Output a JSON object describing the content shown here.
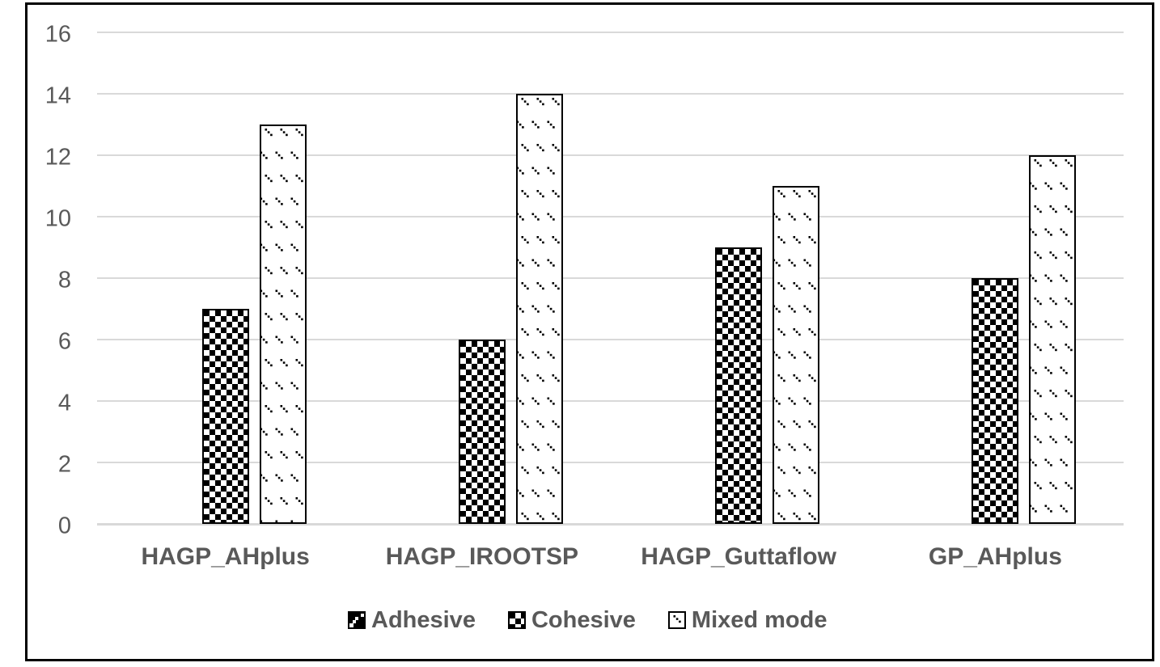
{
  "chart_data": {
    "type": "bar",
    "title": "",
    "xlabel": "",
    "ylabel": "",
    "categories": [
      "HAGP_AHplus",
      "HAGP_IROOTSP",
      "HAGP_Guttaflow",
      "GP_AHplus"
    ],
    "series": [
      {
        "name": "Adhesive",
        "fill": "dark-squares",
        "values": [
          0,
          0,
          0,
          0
        ]
      },
      {
        "name": "Cohesive",
        "fill": "checkerboard",
        "values": [
          7,
          6,
          9,
          8
        ]
      },
      {
        "name": "Mixed mode",
        "fill": "diagonal-dashes",
        "values": [
          13,
          14,
          11,
          12
        ]
      }
    ],
    "yticks": [
      0,
      2,
      4,
      6,
      8,
      10,
      12,
      14,
      16
    ],
    "ylim": [
      0,
      16
    ],
    "grid": true,
    "legend_position": "bottom"
  },
  "colors": {
    "text": "#595959",
    "gridline": "#d9d9d9",
    "bar_outline": "#000000",
    "bar_fill_dark": "#000000",
    "background": "#ffffff",
    "frame_border": "#000000"
  }
}
